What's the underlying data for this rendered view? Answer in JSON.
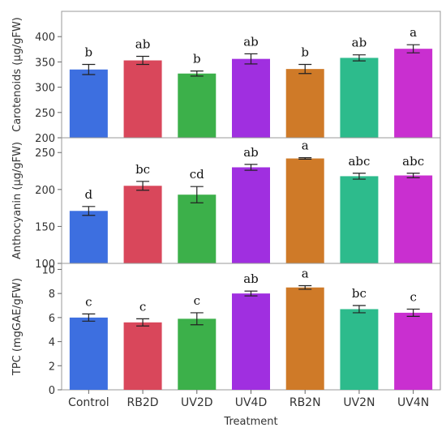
{
  "chart_data": {
    "type": "bar",
    "categories": [
      "Control",
      "RB2D",
      "UV2D",
      "UV4D",
      "RB2N",
      "UV2N",
      "UV4N"
    ],
    "colors": [
      "#3d6fe0",
      "#d9475b",
      "#3cb04a",
      "#a02fe0",
      "#cf7a28",
      "#2dbb8c",
      "#c92fd0"
    ],
    "xlabel": "Treatment",
    "panels": [
      {
        "ylabel": "Carotenoids (µg/gFW)",
        "ylim": [
          200,
          450
        ],
        "yticks": [
          200,
          250,
          300,
          350,
          400
        ],
        "values": [
          335,
          353,
          327,
          356,
          336,
          358,
          376
        ],
        "errors": [
          10,
          8,
          5,
          10,
          9,
          6,
          8
        ],
        "significance": [
          "b",
          "ab",
          "b",
          "ab",
          "b",
          "ab",
          "a"
        ]
      },
      {
        "ylabel": "Anthocyanin (µg/gFW)",
        "ylim": [
          100,
          270
        ],
        "yticks": [
          100,
          150,
          200,
          250
        ],
        "values": [
          171,
          205,
          193,
          230,
          242,
          218,
          219
        ],
        "errors": [
          6,
          6,
          11,
          4,
          1,
          4,
          3
        ],
        "significance": [
          "d",
          "bc",
          "cd",
          "ab",
          "a",
          "abc",
          "abc"
        ]
      },
      {
        "ylabel": "TPC (mgGAE/gFW)",
        "ylim": [
          0,
          10.5
        ],
        "yticks": [
          0,
          2,
          4,
          6,
          8,
          10
        ],
        "values": [
          6.0,
          5.6,
          5.9,
          8.0,
          8.5,
          6.7,
          6.4
        ],
        "errors": [
          0.3,
          0.3,
          0.5,
          0.2,
          0.15,
          0.3,
          0.3
        ],
        "significance": [
          "c",
          "c",
          "c",
          "ab",
          "a",
          "bc",
          "c"
        ]
      }
    ]
  }
}
